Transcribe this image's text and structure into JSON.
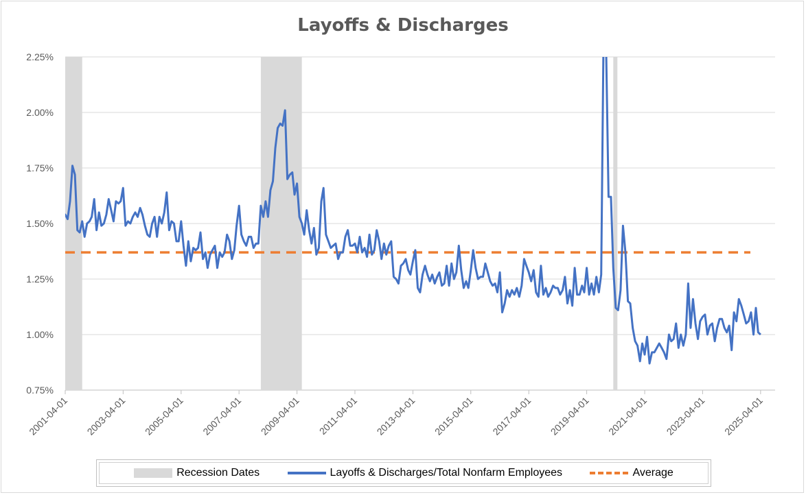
{
  "chart_data": {
    "type": "line",
    "title": "Layoffs & Discharges",
    "xlabel": "",
    "ylabel": "",
    "ylim": [
      0.75,
      2.25
    ],
    "y_ticks": [
      "0.75%",
      "1.00%",
      "1.25%",
      "1.50%",
      "1.75%",
      "2.00%",
      "2.25%"
    ],
    "y_tick_values": [
      0.75,
      1.0,
      1.25,
      1.5,
      1.75,
      2.0,
      2.25
    ],
    "x_ticks": [
      "2001-04-01",
      "2003-04-01",
      "2005-04-01",
      "2007-04-01",
      "2009-04-01",
      "2011-04-01",
      "2013-04-01",
      "2015-04-01",
      "2017-04-01",
      "2019-04-01",
      "2021-04-01",
      "2023-04-01",
      "2025-04-01"
    ],
    "x_range": [
      "2001-04-01",
      "2025-10-01"
    ],
    "grid": "horizontal",
    "legend_position": "bottom",
    "legend": [
      "Recession Dates",
      "Layoffs & Discharges/Total Nonfarm Employees",
      "Average"
    ],
    "recessions": [
      {
        "start": "2001-04-01",
        "end": "2001-11-01"
      },
      {
        "start": "2008-01-01",
        "end": "2009-06-01"
      },
      {
        "start": "2020-03-01",
        "end": "2020-04-01"
      }
    ],
    "average": 1.37,
    "series": [
      {
        "name": "Layoffs & Discharges/Total Nonfarm Employees",
        "color": "#4472c4",
        "start": "2001-01-01",
        "frequency": "monthly",
        "values": [
          1.42,
          1.53,
          1.52,
          1.54,
          1.52,
          1.6,
          1.76,
          1.72,
          1.47,
          1.46,
          1.51,
          1.44,
          1.5,
          1.51,
          1.53,
          1.61,
          1.47,
          1.55,
          1.49,
          1.5,
          1.54,
          1.61,
          1.56,
          1.51,
          1.6,
          1.59,
          1.6,
          1.66,
          1.49,
          1.51,
          1.5,
          1.53,
          1.55,
          1.53,
          1.57,
          1.54,
          1.49,
          1.45,
          1.44,
          1.5,
          1.53,
          1.44,
          1.53,
          1.5,
          1.55,
          1.64,
          1.47,
          1.51,
          1.5,
          1.42,
          1.42,
          1.51,
          1.4,
          1.31,
          1.42,
          1.33,
          1.39,
          1.38,
          1.39,
          1.46,
          1.34,
          1.37,
          1.3,
          1.36,
          1.38,
          1.4,
          1.3,
          1.37,
          1.35,
          1.37,
          1.45,
          1.42,
          1.34,
          1.38,
          1.49,
          1.58,
          1.45,
          1.42,
          1.4,
          1.44,
          1.44,
          1.39,
          1.41,
          1.41,
          1.58,
          1.53,
          1.6,
          1.53,
          1.65,
          1.69,
          1.84,
          1.93,
          1.95,
          1.94,
          2.01,
          1.7,
          1.72,
          1.73,
          1.63,
          1.68,
          1.53,
          1.5,
          1.45,
          1.56,
          1.47,
          1.41,
          1.48,
          1.36,
          1.39,
          1.6,
          1.66,
          1.45,
          1.42,
          1.39,
          1.4,
          1.41,
          1.34,
          1.37,
          1.37,
          1.44,
          1.47,
          1.4,
          1.4,
          1.41,
          1.37,
          1.44,
          1.37,
          1.39,
          1.35,
          1.45,
          1.36,
          1.38,
          1.47,
          1.42,
          1.34,
          1.41,
          1.36,
          1.4,
          1.42,
          1.26,
          1.25,
          1.23,
          1.31,
          1.32,
          1.34,
          1.29,
          1.27,
          1.33,
          1.38,
          1.21,
          1.19,
          1.27,
          1.31,
          1.27,
          1.24,
          1.27,
          1.23,
          1.26,
          1.28,
          1.22,
          1.23,
          1.31,
          1.22,
          1.32,
          1.25,
          1.28,
          1.4,
          1.29,
          1.21,
          1.24,
          1.21,
          1.29,
          1.38,
          1.3,
          1.25,
          1.26,
          1.26,
          1.32,
          1.28,
          1.24,
          1.22,
          1.23,
          1.19,
          1.28,
          1.1,
          1.14,
          1.2,
          1.17,
          1.2,
          1.18,
          1.21,
          1.17,
          1.22,
          1.34,
          1.31,
          1.28,
          1.24,
          1.29,
          1.19,
          1.17,
          1.31,
          1.18,
          1.21,
          1.17,
          1.19,
          1.22,
          1.21,
          1.21,
          1.18,
          1.2,
          1.26,
          1.14,
          1.2,
          1.13,
          1.3,
          1.18,
          1.18,
          1.22,
          1.19,
          1.3,
          1.18,
          1.23,
          1.18,
          1.26,
          1.19,
          1.27,
          2.4,
          2.3,
          1.62,
          1.62,
          1.3,
          1.12,
          1.11,
          1.2,
          1.49,
          1.37,
          1.15,
          1.14,
          1.03,
          0.97,
          0.95,
          0.88,
          0.96,
          0.91,
          0.99,
          0.87,
          0.92,
          0.92,
          0.94,
          0.96,
          0.94,
          0.92,
          0.89,
          1.0,
          0.97,
          0.98,
          1.05,
          0.94,
          1.0,
          0.95,
          1.0,
          1.23,
          1.03,
          1.16,
          1.05,
          0.98,
          1.06,
          1.08,
          1.09,
          1.0,
          1.04,
          1.05,
          0.97,
          1.03,
          1.07,
          1.07,
          1.03,
          1.01,
          1.04,
          0.93,
          1.1,
          1.06,
          1.16,
          1.13,
          1.09,
          1.05,
          1.06,
          1.1,
          1.0,
          1.12,
          1.01,
          1.0
        ]
      }
    ]
  }
}
